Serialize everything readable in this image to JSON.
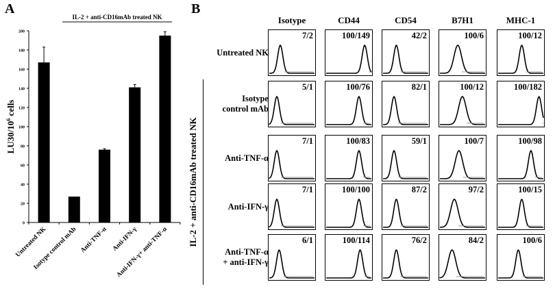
{
  "panel_a": {
    "letter": "A",
    "bracket_label": "IL-2 + anti-CD16mAb treated NK"
  },
  "panel_b": {
    "letter": "B",
    "group_label": "IL-2 + anti-CD16mAb treated NK",
    "columns": [
      "Isotype",
      "CD44",
      "CD54",
      "B7H1",
      "MHC-1"
    ],
    "rows": [
      {
        "label": [
          "Untreated NK"
        ],
        "values": [
          "7/2",
          "100/149",
          "42/2",
          "100/6",
          "100/12"
        ],
        "peaks_decades": [
          0.9,
          3.3,
          1.1,
          1.5,
          2.0
        ]
      },
      {
        "label": [
          "Isotype",
          "control mAb"
        ],
        "values": [
          "5/1",
          "100/76",
          "82/1",
          "100/12",
          "100/182"
        ],
        "peaks_decades": [
          0.6,
          2.8,
          0.9,
          1.9,
          3.5
        ]
      },
      {
        "label": [
          "Anti-TNF-α"
        ],
        "values": [
          "7/1",
          "100/83",
          "59/1",
          "100/7",
          "100/98"
        ],
        "peaks_decades": [
          0.6,
          2.8,
          0.9,
          1.6,
          2.8
        ]
      },
      {
        "label": [
          "Anti-IFN-γ"
        ],
        "values": [
          "7/1",
          "100/100",
          "87/2",
          "97/2",
          "100/15"
        ],
        "peaks_decades": [
          0.6,
          2.8,
          1.1,
          1.2,
          2.0
        ]
      },
      {
        "label": [
          "Anti-TNF-α",
          "+ anti-IFN-γ"
        ],
        "values": [
          "6/1",
          "100/114",
          "76/2",
          "84/2",
          "100/6"
        ],
        "peaks_decades": [
          0.8,
          2.9,
          1.1,
          1.0,
          1.7
        ]
      }
    ],
    "histogram_axis_decades": [
      0,
      4
    ]
  },
  "chart_data": {
    "type": "bar",
    "title": "",
    "xlabel": "",
    "ylabel": "LU30/10^6 cells",
    "ylabel_parts": {
      "base": "LU30/10",
      "sup": "6",
      "tail": " cells"
    },
    "categories": [
      "Untreated NK",
      "Isotype control mAb",
      "Anti-TNF-α",
      "Anti-IFN-γ",
      "Anti-IFN-γ+ anti-TNF-α"
    ],
    "values": [
      167,
      27,
      76,
      141,
      195
    ],
    "error_upper": [
      16,
      0,
      1,
      3,
      4
    ],
    "ylim": [
      0,
      200
    ],
    "yticks": [
      0,
      20,
      40,
      60,
      80,
      100,
      120,
      140,
      160,
      180,
      200
    ],
    "grid": false,
    "bar_color": "#000000"
  }
}
